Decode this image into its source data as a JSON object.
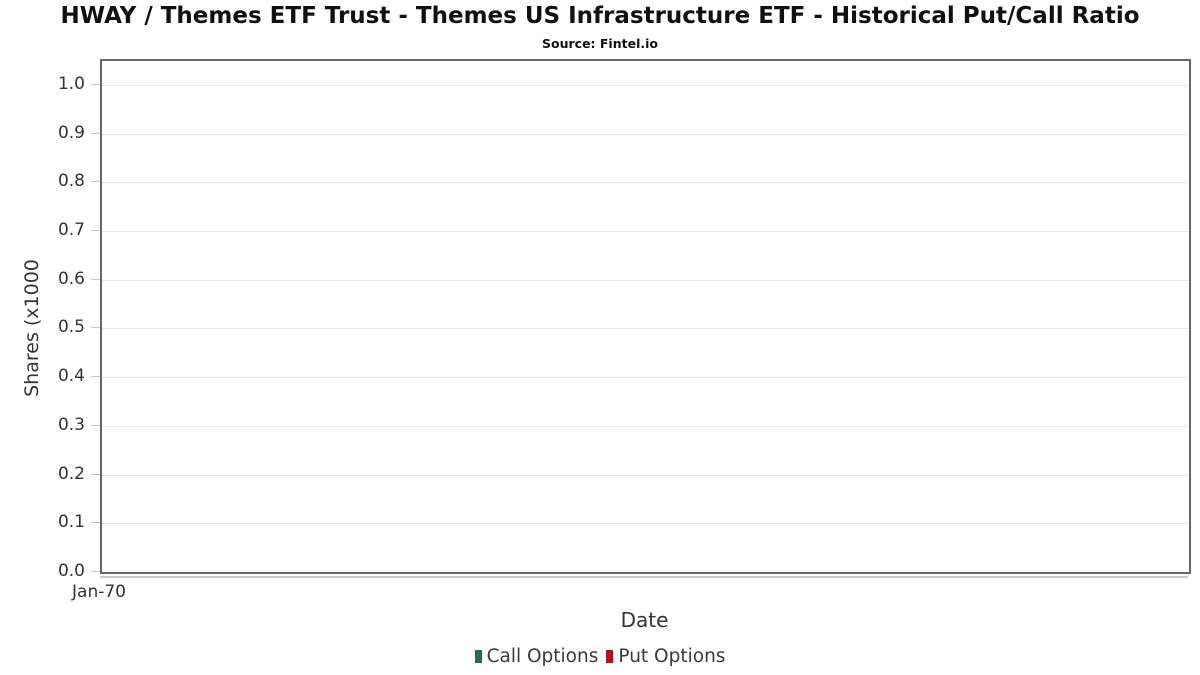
{
  "chart_data": {
    "type": "line",
    "title": "HWAY / Themes ETF Trust - Themes US Infrastructure ETF - Historical Put/Call Ratio",
    "subtitle": "Source: Fintel.io",
    "xlabel": "Date",
    "ylabel": "Shares (x1000",
    "x_ticks": [
      "Jan-70"
    ],
    "y_ticks": [
      "1.0",
      "0.9",
      "0.8",
      "0.7",
      "0.6",
      "0.5",
      "0.4",
      "0.3",
      "0.2",
      "0.1",
      "0.0"
    ],
    "ylim": [
      0,
      1.053
    ],
    "xlim_note": "single x tick at left edge, no data range shown",
    "grid": true,
    "legend_position": "bottom",
    "series": [
      {
        "name": "Call Options",
        "color": "#2b6a45",
        "x": [],
        "values": []
      },
      {
        "name": "Put Options",
        "color": "#b01217",
        "x": [],
        "values": []
      }
    ]
  },
  "colors": {
    "plot_border": "#666666",
    "gridline": "#e6e6e6",
    "tick_mark": "#c9c9c9",
    "axis_baseline": "#cccccc",
    "title_text": "#111111",
    "axis_text": "#333333",
    "legend_text": "#3a3a3a",
    "background": "#ffffff"
  }
}
